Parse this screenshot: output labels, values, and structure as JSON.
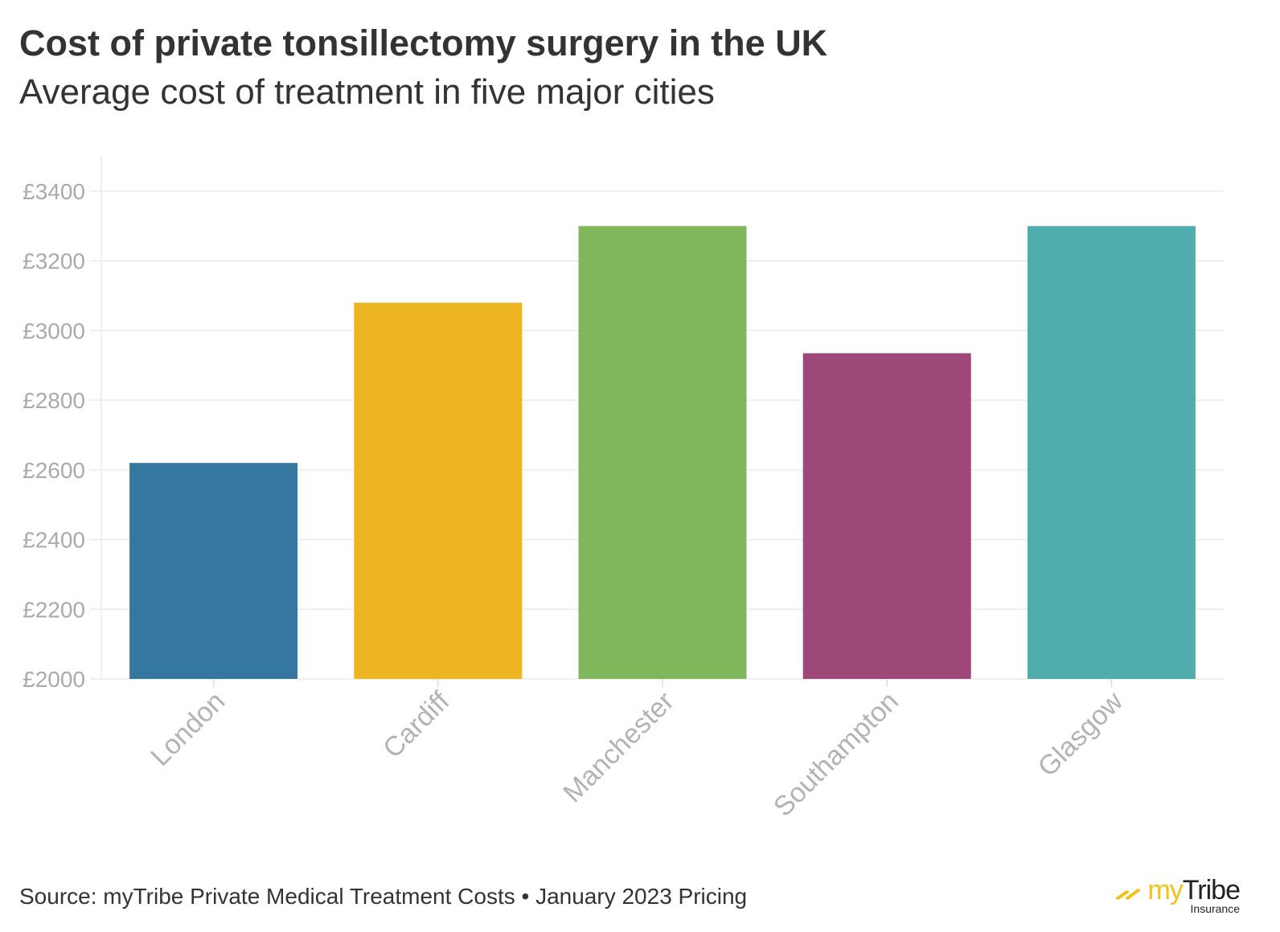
{
  "chart_data": {
    "type": "bar",
    "title": "Cost of private tonsillectomy surgery in the UK",
    "subtitle": "Average cost of treatment in five major cities",
    "categories": [
      "London",
      "Cardiff",
      "Manchester",
      "Southampton",
      "Glasgow"
    ],
    "values": [
      2620,
      3080,
      3300,
      2935,
      3300
    ],
    "colors": [
      "#35789f",
      "#eeb523",
      "#80b75a",
      "#9d4879",
      "#4faead"
    ],
    "ylim": [
      2000,
      3450
    ],
    "yticks": [
      2000,
      2200,
      2400,
      2600,
      2800,
      3000,
      3200,
      3400
    ],
    "ytick_labels": [
      "£2000",
      "£2200",
      "£2400",
      "£2600",
      "£2800",
      "£3000",
      "£3200",
      "£3400"
    ],
    "xlabel": "",
    "ylabel": "",
    "grid": true
  },
  "source": "Source: myTribe Private Medical Treatment Costs • January 2023 Pricing",
  "logo": {
    "my": "my",
    "tribe": "Tribe",
    "sub": "Insurance",
    "accent": "#f2c21b"
  }
}
